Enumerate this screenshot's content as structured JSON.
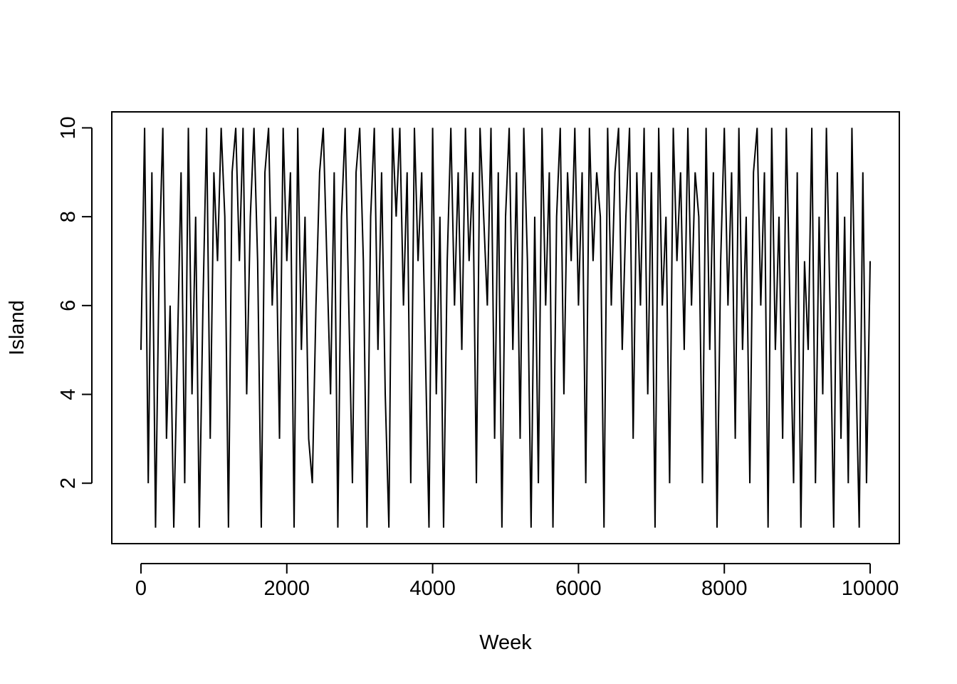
{
  "chart_data": {
    "type": "line",
    "xlabel": "Week",
    "ylabel": "Island",
    "color": "#000000",
    "xlim": [
      -400,
      10400
    ],
    "ylim": [
      0.64,
      10.36
    ],
    "xticks": [
      0,
      2000,
      4000,
      6000,
      8000,
      10000
    ],
    "yticks": [
      2,
      4,
      6,
      8,
      10
    ],
    "x": [
      0,
      50,
      100,
      150,
      200,
      250,
      300,
      350,
      400,
      450,
      500,
      550,
      600,
      650,
      700,
      750,
      800,
      850,
      900,
      950,
      1000,
      1050,
      1100,
      1150,
      1200,
      1250,
      1300,
      1350,
      1400,
      1450,
      1500,
      1550,
      1600,
      1650,
      1700,
      1750,
      1800,
      1850,
      1900,
      1950,
      2000,
      2050,
      2100,
      2150,
      2200,
      2250,
      2300,
      2350,
      2400,
      2450,
      2500,
      2550,
      2600,
      2650,
      2700,
      2750,
      2800,
      2850,
      2900,
      2950,
      3000,
      3050,
      3100,
      3150,
      3200,
      3250,
      3300,
      3350,
      3400,
      3450,
      3500,
      3550,
      3600,
      3650,
      3700,
      3750,
      3800,
      3850,
      3900,
      3950,
      4000,
      4050,
      4100,
      4150,
      4200,
      4250,
      4300,
      4350,
      4400,
      4450,
      4500,
      4550,
      4600,
      4650,
      4700,
      4750,
      4800,
      4850,
      4900,
      4950,
      5000,
      5050,
      5100,
      5150,
      5200,
      5250,
      5300,
      5350,
      5400,
      5450,
      5500,
      5550,
      5600,
      5650,
      5700,
      5750,
      5800,
      5850,
      5900,
      5950,
      6000,
      6050,
      6100,
      6150,
      6200,
      6250,
      6300,
      6350,
      6400,
      6450,
      6500,
      6550,
      6600,
      6650,
      6700,
      6750,
      6800,
      6850,
      6900,
      6950,
      7000,
      7050,
      7100,
      7150,
      7200,
      7250,
      7300,
      7350,
      7400,
      7450,
      7500,
      7550,
      7600,
      7650,
      7700,
      7750,
      7800,
      7850,
      7900,
      7950,
      8000,
      8050,
      8100,
      8150,
      8200,
      8250,
      8300,
      8350,
      8400,
      8450,
      8500,
      8550,
      8600,
      8650,
      8700,
      8750,
      8800,
      8850,
      8900,
      8950,
      9000,
      9050,
      9100,
      9150,
      9200,
      9250,
      9300,
      9350,
      9400,
      9450,
      9500,
      9550,
      9600,
      9650,
      9700,
      9750,
      9800,
      9850,
      9900,
      9950,
      10000
    ],
    "values": [
      5,
      10,
      2,
      9,
      1,
      7,
      10,
      3,
      6,
      1,
      5,
      9,
      2,
      10,
      4,
      8,
      1,
      6,
      10,
      3,
      9,
      7,
      10,
      8,
      1,
      9,
      10,
      7,
      10,
      4,
      8,
      10,
      7,
      1,
      9,
      10,
      6,
      8,
      3,
      10,
      7,
      9,
      1,
      10,
      5,
      8,
      3,
      2,
      6,
      9,
      10,
      7,
      4,
      9,
      1,
      8,
      10,
      6,
      2,
      9,
      10,
      7,
      1,
      8,
      10,
      5,
      9,
      4,
      1,
      10,
      8,
      10,
      6,
      9,
      2,
      10,
      7,
      9,
      5,
      1,
      10,
      4,
      8,
      1,
      7,
      10,
      6,
      9,
      5,
      10,
      7,
      9,
      2,
      10,
      8,
      6,
      10,
      3,
      9,
      1,
      8,
      10,
      5,
      9,
      3,
      10,
      7,
      1,
      8,
      2,
      10,
      6,
      9,
      1,
      8,
      10,
      4,
      9,
      7,
      10,
      6,
      9,
      2,
      10,
      7,
      9,
      8,
      1,
      10,
      6,
      9,
      10,
      5,
      8,
      10,
      3,
      9,
      6,
      10,
      4,
      9,
      1,
      10,
      6,
      8,
      2,
      10,
      7,
      9,
      5,
      10,
      6,
      9,
      8,
      2,
      10,
      5,
      9,
      1,
      7,
      10,
      6,
      9,
      3,
      10,
      5,
      8,
      2,
      9,
      10,
      6,
      9,
      1,
      10,
      5,
      8,
      3,
      10,
      6,
      2,
      9,
      1,
      7,
      5,
      10,
      2,
      8,
      4,
      10,
      6,
      1,
      9,
      3,
      8,
      2,
      10,
      5,
      1,
      9,
      2,
      7
    ]
  }
}
